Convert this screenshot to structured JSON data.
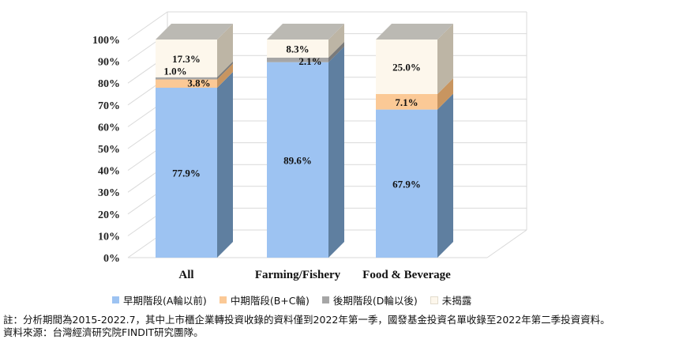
{
  "chart_data": {
    "type": "bar",
    "stacked": true,
    "style_3d": true,
    "categories": [
      "All",
      "Farming/Fishery",
      "Food & Beverage"
    ],
    "series": [
      {
        "name": "早期階段(A輪以前)",
        "values": [
          77.9,
          89.6,
          67.9
        ],
        "labels": [
          "77.9%",
          "89.6%",
          "67.9%"
        ],
        "color": "#9dc3f2",
        "side_color": "#5f7fa0"
      },
      {
        "name": "中期階段(B+C輪)",
        "values": [
          3.8,
          0,
          7.1
        ],
        "labels": [
          "3.8%",
          "",
          "7.1%"
        ],
        "color": "#fbc996",
        "side_color": "#c89560"
      },
      {
        "name": "後期階段(D輪以後)",
        "values": [
          1.0,
          2.1,
          0
        ],
        "labels": [
          "1.0%",
          "2.1%",
          ""
        ],
        "color": "#a6a6a6",
        "side_color": "#7a7a7a"
      },
      {
        "name": "未揭露",
        "values": [
          17.3,
          8.3,
          25.0
        ],
        "labels": [
          "17.3%",
          "8.3%",
          "25.0%"
        ],
        "color": "#fdf7ec",
        "side_color": "#bdb5a5"
      }
    ],
    "yticks": [
      "0%",
      "10%",
      "20%",
      "30%",
      "40%",
      "50%",
      "60%",
      "70%",
      "80%",
      "90%",
      "100%"
    ],
    "ylim": [
      0,
      100
    ],
    "grid": true,
    "legend_position": "bottom"
  },
  "notes": {
    "line1": "註：分析期間為2015-2022.7，其中上市櫃企業轉投資收錄的資料僅到2022年第一季，國發基金投資名單收錄至2022年第二季投資資料。",
    "line2": "資料來源：台灣經濟研究院FINDIT研究團隊。"
  }
}
